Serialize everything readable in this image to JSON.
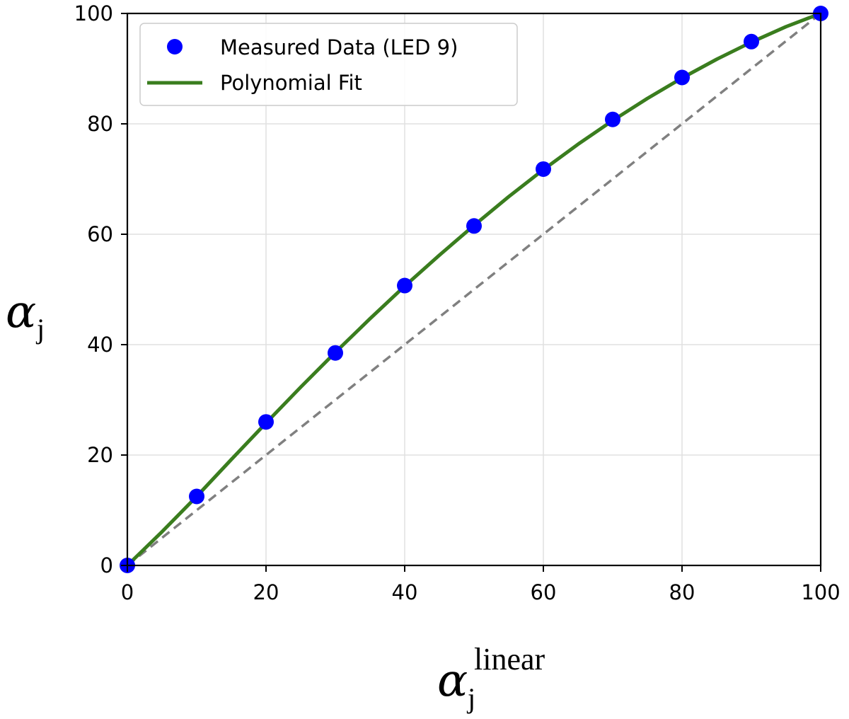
{
  "chart_data": {
    "type": "scatter",
    "xlabel": {
      "symbol": "α",
      "subscript": "j",
      "superscript": "linear"
    },
    "ylabel": {
      "symbol": "α",
      "subscript": "j"
    },
    "xlim": [
      0,
      100
    ],
    "ylim": [
      0,
      100
    ],
    "x_ticks": [
      0,
      20,
      40,
      60,
      80,
      100
    ],
    "y_ticks": [
      0,
      20,
      40,
      60,
      80,
      100
    ],
    "x_tick_labels": [
      "0",
      "20",
      "40",
      "60",
      "80",
      "100"
    ],
    "y_tick_labels": [
      "0",
      "20",
      "40",
      "60",
      "80",
      "100"
    ],
    "grid": true,
    "legend_position": "top-left",
    "series": [
      {
        "name": "Measured Data (LED 9)",
        "kind": "scatter",
        "color": "#0000ff",
        "x": [
          0,
          10,
          20,
          30,
          40,
          50,
          60,
          70,
          80,
          90,
          100
        ],
        "y": [
          0,
          12.5,
          26.0,
          38.5,
          50.7,
          61.5,
          71.8,
          80.8,
          88.4,
          94.9,
          100
        ]
      },
      {
        "name": "Polynomial Fit",
        "kind": "line",
        "color": "#3a7d1e",
        "x": [
          0,
          5,
          10,
          15,
          20,
          25,
          30,
          35,
          40,
          45,
          50,
          55,
          60,
          65,
          70,
          75,
          80,
          85,
          90,
          95,
          100
        ],
        "y": [
          0,
          6.1,
          12.5,
          19.2,
          25.8,
          32.3,
          38.6,
          44.7,
          50.6,
          56.2,
          61.6,
          66.8,
          71.7,
          76.3,
          80.6,
          84.6,
          88.3,
          91.7,
          94.8,
          97.6,
          100
        ]
      },
      {
        "kind": "dashed-line",
        "color": "#808080",
        "x": [
          0,
          100
        ],
        "y": [
          0,
          100
        ]
      }
    ]
  }
}
